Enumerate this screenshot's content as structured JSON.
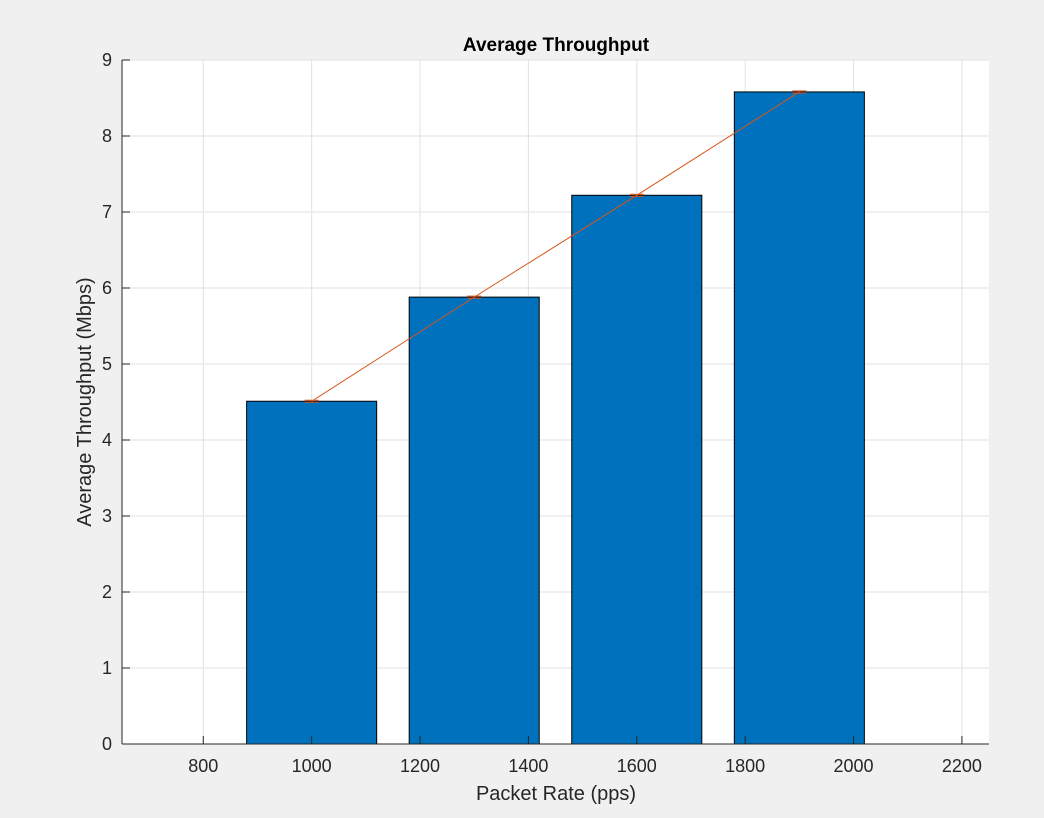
{
  "chart_data": {
    "type": "bar",
    "title": "Average Throughput",
    "xlabel": "Packet Rate (pps)",
    "ylabel": "Average Throughput (Mbps)",
    "xlim": [
      650,
      2250
    ],
    "ylim": [
      0,
      9
    ],
    "xticks": [
      800,
      1000,
      1200,
      1400,
      1600,
      1800,
      2000,
      2200
    ],
    "yticks": [
      0,
      1,
      2,
      3,
      4,
      5,
      6,
      7,
      8,
      9
    ],
    "grid": true,
    "bars": {
      "x": [
        1000,
        1300,
        1600,
        1900
      ],
      "values": [
        4.51,
        5.88,
        7.22,
        8.58
      ],
      "width": 240,
      "color": "#0072bd"
    },
    "errorbar_series": {
      "x": [
        1000,
        1300,
        1600,
        1900
      ],
      "values": [
        4.51,
        5.88,
        7.22,
        8.58
      ],
      "color": "#d95319"
    }
  }
}
